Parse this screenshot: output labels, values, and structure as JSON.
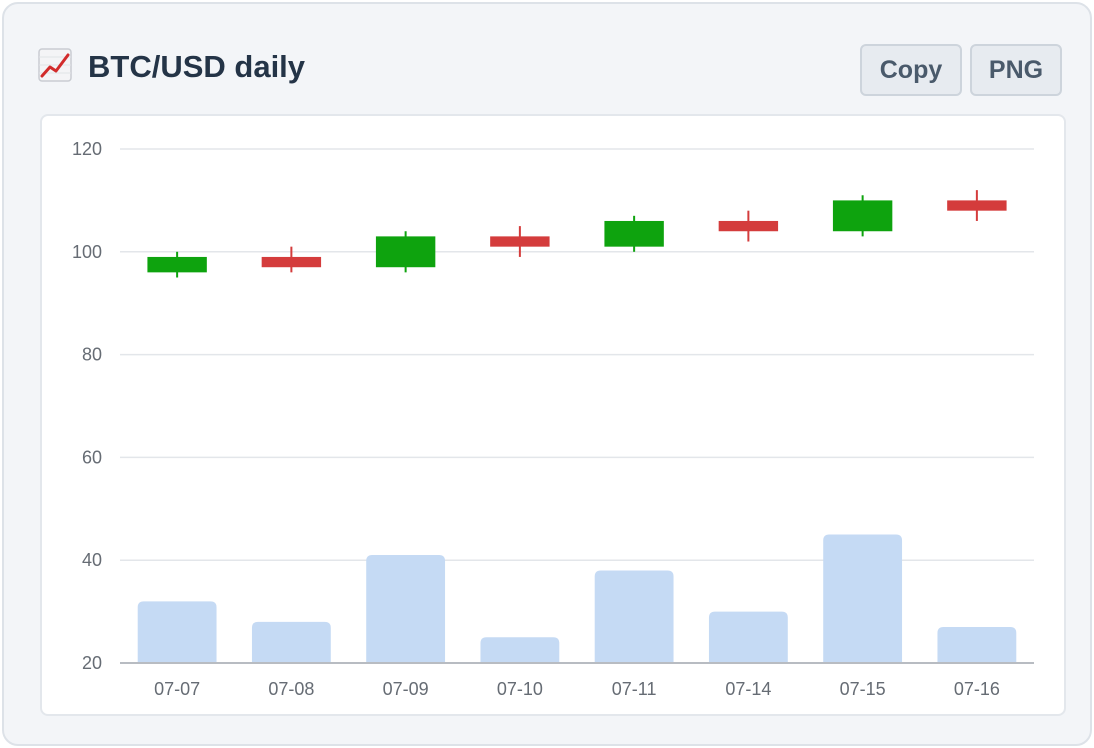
{
  "header": {
    "title": "BTC/USD daily",
    "icon": "chart-increasing-icon",
    "copy_label": "Copy",
    "png_label": "PNG"
  },
  "colors": {
    "up": "#0ea30e",
    "down": "#d43c3c",
    "volume": "#c5daf4",
    "grid": "#e3e6ea",
    "axis": "#b8bcc2"
  },
  "chart_data": {
    "type": "candlestick",
    "categories": [
      "07-07",
      "07-08",
      "07-09",
      "07-10",
      "07-11",
      "07-14",
      "07-15",
      "07-16"
    ],
    "series": [
      {
        "open": 96,
        "high": 100,
        "low": 95,
        "close": 99
      },
      {
        "open": 99,
        "high": 101,
        "low": 96,
        "close": 97
      },
      {
        "open": 97,
        "high": 104,
        "low": 96,
        "close": 103
      },
      {
        "open": 103,
        "high": 105,
        "low": 99,
        "close": 101
      },
      {
        "open": 101,
        "high": 107,
        "low": 100,
        "close": 106
      },
      {
        "open": 106,
        "high": 108,
        "low": 102,
        "close": 104
      },
      {
        "open": 104,
        "high": 111,
        "low": 103,
        "close": 110
      },
      {
        "open": 110,
        "high": 112,
        "low": 106,
        "close": 108
      }
    ],
    "volume": [
      32,
      28,
      41,
      25,
      38,
      30,
      45,
      27
    ],
    "ylim": [
      20,
      120
    ],
    "yticks": [
      20,
      40,
      60,
      80,
      100,
      120
    ],
    "grid": true,
    "title": "BTC/USD daily",
    "xlabel": "",
    "ylabel": ""
  }
}
